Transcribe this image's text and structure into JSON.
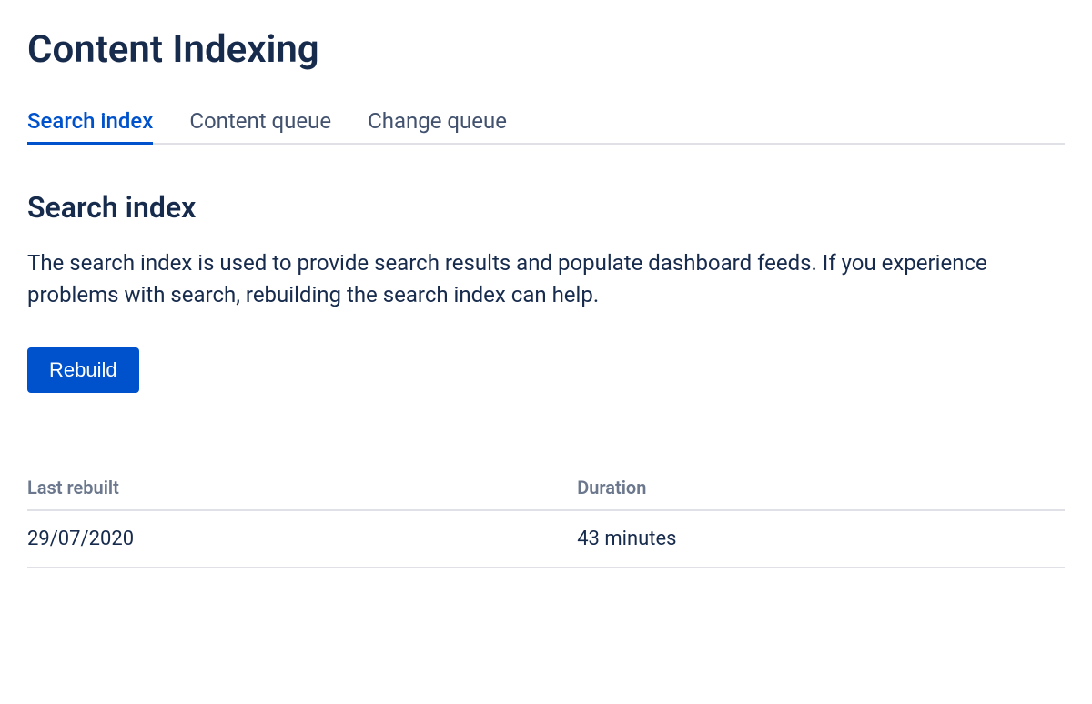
{
  "page": {
    "title": "Content Indexing"
  },
  "tabs": [
    {
      "label": "Search index",
      "active": true
    },
    {
      "label": "Content queue",
      "active": false
    },
    {
      "label": "Change queue",
      "active": false
    }
  ],
  "section": {
    "title": "Search index",
    "description": "The search index is used to provide search results and populate dashboard feeds. If you experience problems with search, rebuilding the search index can help."
  },
  "actions": {
    "rebuild_label": "Rebuild"
  },
  "table": {
    "columns": [
      "Last rebuilt",
      "Duration"
    ],
    "row": {
      "last_rebuilt": "29/07/2020",
      "duration": "43 minutes"
    }
  },
  "colors": {
    "primary": "#0052cc",
    "text_heading": "#172b4d",
    "text_body": "#172b4d",
    "text_muted": "#6b778c",
    "border": "#dfe1e6",
    "background": "#ffffff"
  },
  "typography": {
    "page_title_size": 42,
    "tab_size": 24,
    "section_title_size": 32,
    "body_size": 24,
    "button_size": 22,
    "table_header_size": 20,
    "table_cell_size": 22
  }
}
